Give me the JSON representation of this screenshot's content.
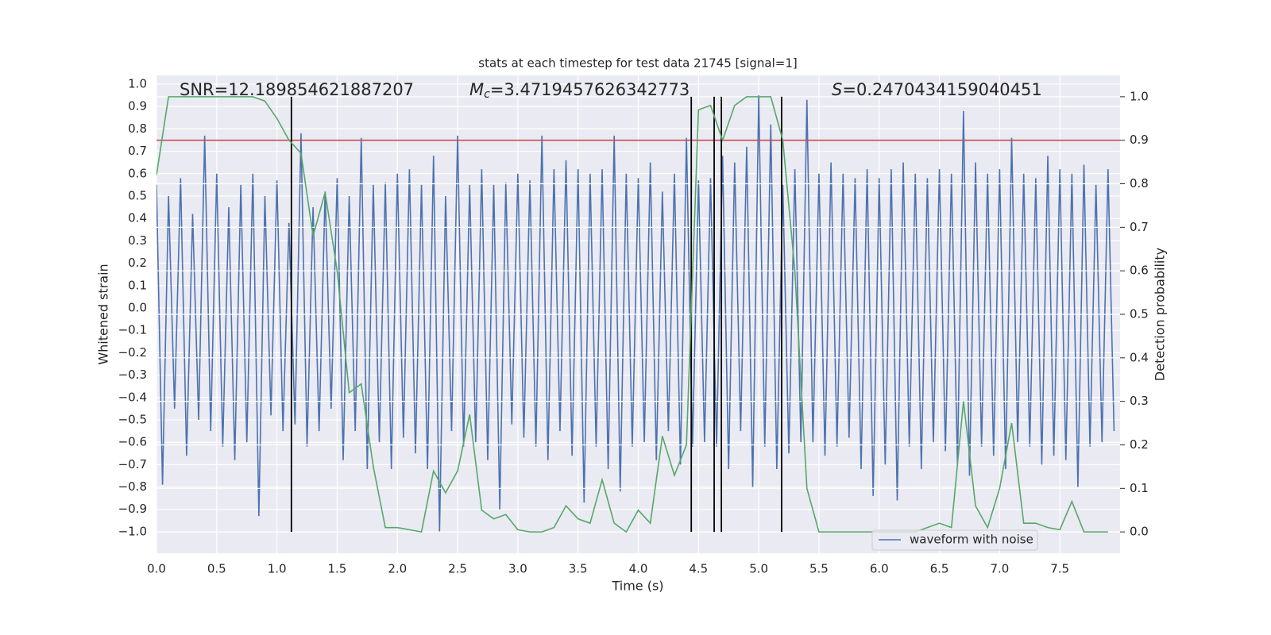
{
  "chart_data": {
    "type": "line",
    "title": "stats at each timestep for test data 21745 [signal=1]",
    "xlabel": "Time (s)",
    "ylabel": "Whitened strain",
    "y2label": "Detection probability",
    "annotations": [
      {
        "text": "SNR=12.189854621887207"
      },
      {
        "symbol": "M",
        "subscript": "c",
        "text": "=3.4719457626342773"
      },
      {
        "symbol": "S",
        "text": "=0.2470434159040451"
      }
    ],
    "xlim": [
      0,
      8
    ],
    "xticks": [
      {
        "value": 0,
        "label": "0.0"
      },
      0.5,
      {
        "value": 1,
        "label": "1.0"
      },
      1.5,
      {
        "value": 2,
        "label": "2.0"
      },
      2.5,
      {
        "value": 3,
        "label": "3.0"
      },
      3.5,
      {
        "value": 4,
        "label": "4.0"
      },
      4.5,
      {
        "value": 5,
        "label": "5.0"
      },
      5.5,
      {
        "value": 6,
        "label": "6.0"
      },
      6.5,
      {
        "value": 7,
        "label": "7.0"
      },
      7.5
    ],
    "ylim": [
      -1.096,
      1.039
    ],
    "yticks": [
      {
        "value": -1,
        "label": "−1.0"
      },
      {
        "value": -0.9,
        "label": "−0.9"
      },
      {
        "value": -0.8,
        "label": "−0.8"
      },
      {
        "value": -0.7,
        "label": "−0.7"
      },
      {
        "value": -0.6,
        "label": "−0.6"
      },
      {
        "value": -0.5,
        "label": "−0.5"
      },
      {
        "value": -0.4,
        "label": "−0.4"
      },
      {
        "value": -0.3,
        "label": "−0.3"
      },
      {
        "value": -0.2,
        "label": "−0.2"
      },
      {
        "value": -0.1,
        "label": "−0.1"
      },
      {
        "value": 0,
        "label": "0.0"
      },
      0.1,
      0.2,
      0.3,
      0.4,
      0.5,
      0.6,
      0.7,
      0.8,
      0.9,
      {
        "value": 1,
        "label": "1.0"
      }
    ],
    "y2lim": [
      -0.049,
      1.049
    ],
    "y2ticks": [
      {
        "value": 0,
        "label": "0.0"
      },
      0.1,
      0.2,
      0.3,
      0.4,
      0.5,
      0.6,
      0.7,
      0.8,
      0.9,
      {
        "value": 1,
        "label": "1.0"
      }
    ],
    "grid": true,
    "legend": "lower right",
    "series": [
      {
        "name": "waveform with noise",
        "color": "#4c72b0",
        "x": [
          0,
          0.05,
          0.1,
          0.15,
          0.2,
          0.25,
          0.3,
          0.35,
          0.4,
          0.45,
          0.5,
          0.55,
          0.6,
          0.65,
          0.7,
          0.75,
          0.8,
          0.85,
          0.9,
          0.95,
          1,
          1.05,
          1.1,
          1.15,
          1.2,
          1.25,
          1.3,
          1.35,
          1.4,
          1.45,
          1.5,
          1.55,
          1.6,
          1.65,
          1.7,
          1.75,
          1.8,
          1.85,
          1.9,
          1.95,
          2,
          2.05,
          2.1,
          2.15,
          2.2,
          2.25,
          2.3,
          2.35,
          2.4,
          2.45,
          2.5,
          2.55,
          2.6,
          2.65,
          2.7,
          2.75,
          2.8,
          2.85,
          2.9,
          2.95,
          3,
          3.05,
          3.1,
          3.15,
          3.2,
          3.25,
          3.3,
          3.35,
          3.4,
          3.45,
          3.5,
          3.55,
          3.6,
          3.65,
          3.7,
          3.75,
          3.8,
          3.85,
          3.9,
          3.95,
          4,
          4.05,
          4.1,
          4.15,
          4.2,
          4.25,
          4.3,
          4.35,
          4.4,
          4.45,
          4.5,
          4.55,
          4.6,
          4.65,
          4.7,
          4.75,
          4.8,
          4.85,
          4.9,
          4.95,
          5,
          5.05,
          5.1,
          5.15,
          5.2,
          5.25,
          5.3,
          5.35,
          5.4,
          5.45,
          5.5,
          5.55,
          5.6,
          5.65,
          5.7,
          5.75,
          5.8,
          5.85,
          5.9,
          5.95,
          6,
          6.05,
          6.1,
          6.15,
          6.2,
          6.25,
          6.3,
          6.35,
          6.4,
          6.45,
          6.5,
          6.55,
          6.6,
          6.65,
          6.7,
          6.75,
          6.8,
          6.85,
          6.9,
          6.95,
          7,
          7.05,
          7.1,
          7.15,
          7.2,
          7.25,
          7.3,
          7.35,
          7.4,
          7.45,
          7.5,
          7.55,
          7.6,
          7.65,
          7.7,
          7.75,
          7.8,
          7.85,
          7.9,
          7.95
        ],
        "values": [
          0.55,
          -0.79,
          0.5,
          -0.45,
          0.58,
          -0.66,
          0.42,
          -0.5,
          0.77,
          -0.55,
          0.6,
          -0.62,
          0.45,
          -0.68,
          0.55,
          -0.6,
          0.6,
          -0.93,
          0.5,
          -0.48,
          0.57,
          -0.55,
          0.38,
          -0.52,
          0.78,
          -0.62,
          0.45,
          -0.55,
          0.52,
          -0.45,
          0.58,
          -0.68,
          0.5,
          -0.55,
          0.76,
          -0.72,
          0.55,
          -0.6,
          0.56,
          -0.72,
          0.6,
          -0.58,
          0.62,
          -0.65,
          0.55,
          -0.72,
          0.68,
          -1.0,
          0.5,
          -0.55,
          0.77,
          -0.62,
          0.55,
          -0.6,
          0.62,
          -0.68,
          0.55,
          -0.9,
          0.56,
          -0.52,
          0.6,
          -0.58,
          0.57,
          -0.62,
          0.77,
          -0.68,
          0.62,
          -0.55,
          0.66,
          -0.66,
          0.62,
          -0.87,
          0.6,
          -0.62,
          0.62,
          -0.72,
          0.77,
          -0.82,
          0.6,
          -0.62,
          0.58,
          -0.6,
          0.65,
          -0.68,
          0.52,
          -0.55,
          0.6,
          -0.7,
          0.76,
          -0.62,
          0.57,
          -0.6,
          0.58,
          -0.62,
          0.68,
          -0.72,
          0.65,
          -0.55,
          0.72,
          -0.8,
          0.95,
          -0.62,
          0.82,
          -0.72,
          0.55,
          -0.65,
          0.62,
          -0.6,
          0.93,
          -0.6,
          0.6,
          -0.66,
          0.65,
          -0.62,
          0.6,
          -0.58,
          0.58,
          -0.72,
          0.62,
          -0.84,
          0.58,
          -0.7,
          0.62,
          -0.86,
          0.65,
          -0.62,
          0.6,
          -0.72,
          0.58,
          -0.6,
          0.62,
          -0.64,
          0.6,
          -0.7,
          0.88,
          -0.75,
          0.65,
          -0.62,
          0.6,
          -0.66,
          0.62,
          -0.72,
          0.76,
          -0.6,
          0.6,
          -0.62,
          0.58,
          -0.7,
          0.68,
          -0.66,
          0.62,
          -0.68,
          0.6,
          -0.8,
          0.64,
          -0.62,
          0.55,
          -0.6,
          0.62,
          -0.55
        ]
      },
      {
        "color": "#55a868",
        "axis": "y2",
        "x": [
          0,
          0.1,
          0.2,
          0.3,
          0.4,
          0.5,
          0.6,
          0.7,
          0.8,
          0.9,
          1,
          1.1,
          1.2,
          1.3,
          1.4,
          1.5,
          1.6,
          1.7,
          1.8,
          1.9,
          2,
          2.1,
          2.2,
          2.3,
          2.4,
          2.5,
          2.6,
          2.7,
          2.8,
          2.9,
          3,
          3.1,
          3.2,
          3.3,
          3.4,
          3.5,
          3.6,
          3.7,
          3.8,
          3.9,
          4,
          4.1,
          4.2,
          4.3,
          4.4,
          4.5,
          4.6,
          4.7,
          4.8,
          4.9,
          5,
          5.1,
          5.2,
          5.3,
          5.4,
          5.5,
          5.6,
          5.7,
          5.8,
          5.9,
          6,
          6.1,
          6.2,
          6.3,
          6.4,
          6.5,
          6.6,
          6.7,
          6.8,
          6.9,
          7,
          7.1,
          7.2,
          7.3,
          7.4,
          7.5,
          7.6,
          7.7,
          7.8,
          7.9
        ],
        "values": [
          0.82,
          1.0,
          1.0,
          1.0,
          1.0,
          1.0,
          1.0,
          1.0,
          1.0,
          0.99,
          0.95,
          0.9,
          0.87,
          0.68,
          0.78,
          0.6,
          0.32,
          0.34,
          0.15,
          0.01,
          0.01,
          0.005,
          0.0,
          0.14,
          0.09,
          0.14,
          0.27,
          0.05,
          0.03,
          0.04,
          0.005,
          0.0,
          0.0,
          0.01,
          0.06,
          0.03,
          0.02,
          0.12,
          0.02,
          0.0,
          0.05,
          0.02,
          0.22,
          0.13,
          0.2,
          0.97,
          0.98,
          0.9,
          0.98,
          1.0,
          1.0,
          1.0,
          0.9,
          0.6,
          0.1,
          0.0,
          0.0,
          0.0,
          0.0,
          0.0,
          0.0,
          0.0,
          0.0,
          0.0,
          0.01,
          0.02,
          0.01,
          0.3,
          0.06,
          0.01,
          0.1,
          0.25,
          0.02,
          0.02,
          0.01,
          0.005,
          0.07,
          0.0,
          0.0,
          0.0
        ]
      }
    ],
    "hlines": [
      {
        "value": 0.9,
        "axis": "y2",
        "color": "#c44e52"
      }
    ],
    "vlines": [
      1.12,
      4.44,
      4.63,
      4.69,
      5.19
    ],
    "vline_span": [
      0,
      1
    ],
    "vline_color": "#000000"
  }
}
